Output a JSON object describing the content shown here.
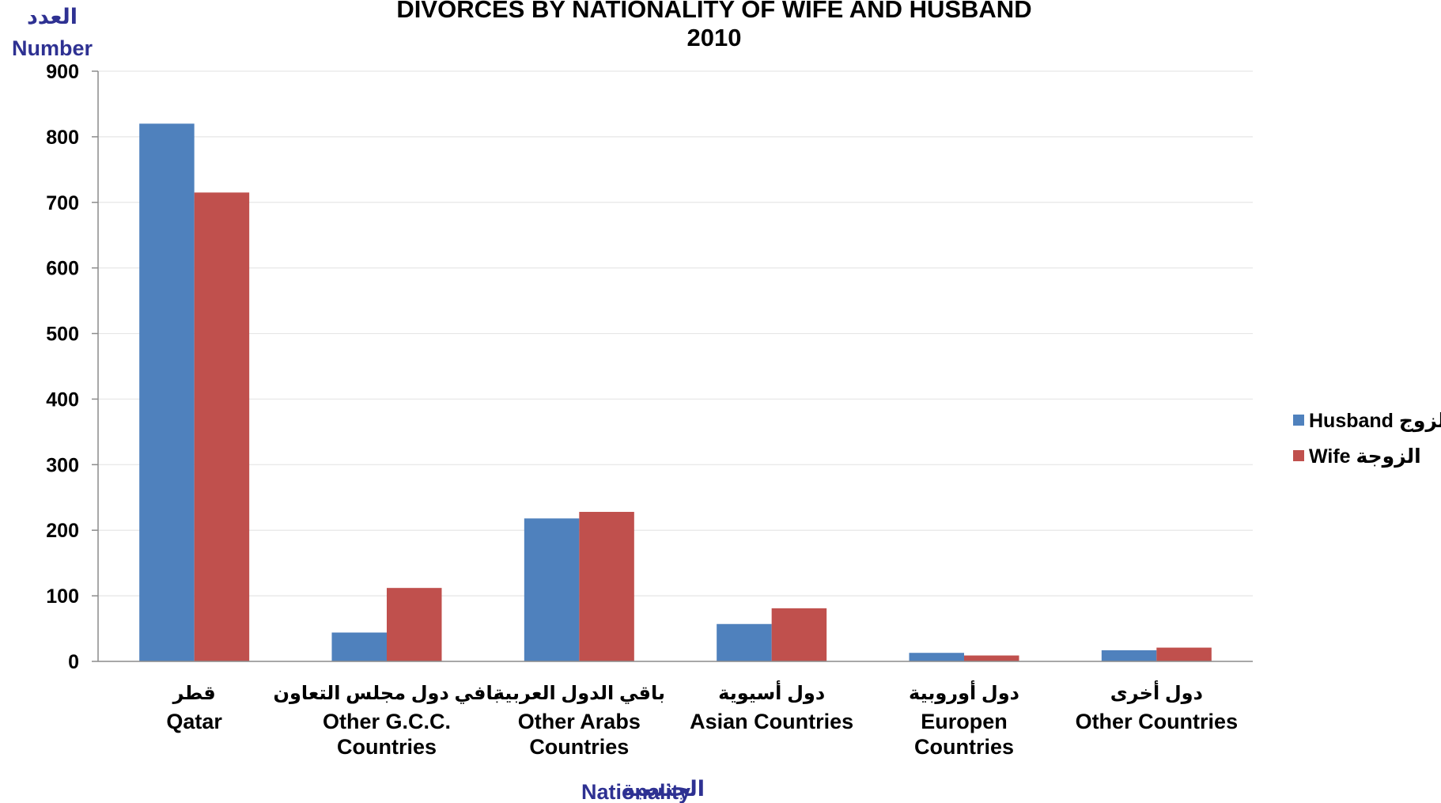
{
  "chart_data": {
    "type": "bar",
    "title": [
      "DIVORCES BY NATIONALITY OF WIFE AND HUSBAND",
      "2010"
    ],
    "ylabel": [
      "العدد",
      "Number"
    ],
    "xlabel": {
      "en": "Nationality",
      "ar": "الجنسية"
    },
    "ylim": [
      0,
      900
    ],
    "yticks": [
      0,
      100,
      200,
      300,
      400,
      500,
      600,
      700,
      800,
      900
    ],
    "grid": true,
    "legend_position": "right",
    "axis_label_color": "#2E3192",
    "categories": [
      {
        "ar": "قطر",
        "en": [
          "Qatar"
        ]
      },
      {
        "ar": "بافي دول مجلس التعاون",
        "en": [
          "Other G.C.C.",
          "Countries"
        ]
      },
      {
        "ar": "باقي الدول العربية",
        "en": [
          "Other Arabs",
          "Countries"
        ]
      },
      {
        "ar": "دول أسيوية",
        "en": [
          "Asian Countries"
        ]
      },
      {
        "ar": "دول أوروبية",
        "en": [
          "Europen",
          "Countries"
        ]
      },
      {
        "ar": "دول أخرى",
        "en": [
          "Other Countries"
        ]
      }
    ],
    "series": [
      {
        "name": "Husband الزوج",
        "color": "#4F81BD",
        "values": [
          820,
          44,
          218,
          57,
          13,
          17
        ]
      },
      {
        "name": "Wife الزوجة",
        "color": "#C0504D",
        "values": [
          715,
          112,
          228,
          81,
          9,
          21
        ]
      }
    ]
  }
}
